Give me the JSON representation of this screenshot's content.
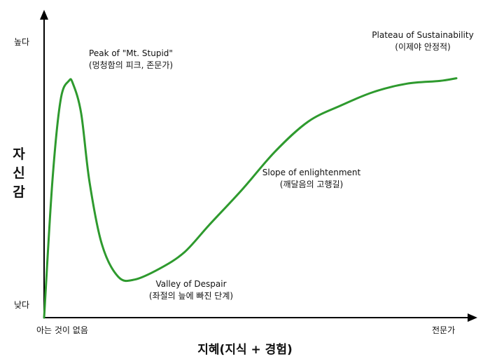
{
  "chart_data": {
    "type": "line",
    "title": "",
    "xlabel": "지혜(지식 + 경험)",
    "ylabel_chars": [
      "자",
      "신",
      "감"
    ],
    "y_tick_labels": {
      "high": "높다",
      "low": "낮다"
    },
    "x_tick_labels": {
      "start": "아는 것이 없음",
      "end": "전문가"
    },
    "xlim": [
      0,
      100
    ],
    "ylim": [
      0,
      100
    ],
    "series": [
      {
        "color": "#2e9a2e",
        "x": [
          0,
          2,
          4,
          6,
          7,
          9,
          11,
          14,
          18,
          22,
          28,
          34,
          40,
          48,
          56,
          64,
          72,
          80,
          88,
          96,
          100
        ],
        "y": [
          0,
          50,
          80,
          87,
          86,
          75,
          50,
          27,
          15,
          14,
          18,
          24,
          34,
          47,
          61,
          72,
          78,
          83,
          86,
          87,
          88
        ]
      }
    ],
    "annotations": [
      {
        "id": "peak",
        "lines": [
          "Peak of \"Mt. Stupid\"",
          "(멍청함의 피크, 존문가)"
        ]
      },
      {
        "id": "valley",
        "lines": [
          "Valley of Despair",
          "(좌절의 늪에 빠진 단계)"
        ]
      },
      {
        "id": "slope",
        "lines": [
          "Slope of enlightenment",
          "(깨달음의 고행길)"
        ]
      },
      {
        "id": "plateau",
        "lines": [
          "Plateau of Sustainability",
          "(이제야 안정적)"
        ]
      }
    ]
  }
}
